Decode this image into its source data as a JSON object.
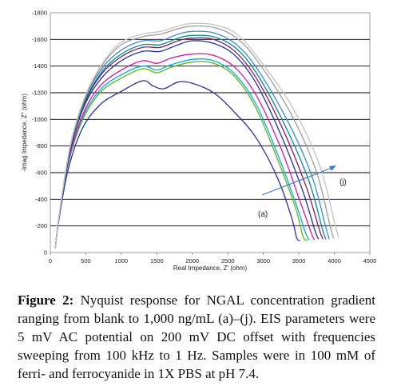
{
  "chart_data": {
    "type": "line",
    "xlabel": "Real Impedance, Z' (ohm)",
    "ylabel": "-Imag Impedance, Z'' (ohm)",
    "xlim": [
      0,
      4500
    ],
    "ylim": [
      0,
      -1800
    ],
    "x_ticks": [
      "0",
      "500",
      "1000",
      "1500",
      "2000",
      "2500",
      "3000",
      "3500",
      "4000",
      "4500"
    ],
    "y_ticks": [
      "0",
      "-200",
      "-400",
      "-600",
      "-800",
      "-1000",
      "-1200",
      "-1400",
      "-1600",
      "-1800"
    ],
    "grid": "horizontal",
    "annotations": [
      "(a)",
      "(j)"
    ],
    "series": [
      {
        "color": "#2a2f8f",
        "points": [
          [
            70,
            -30
          ],
          [
            120,
            -240
          ],
          [
            250,
            -620
          ],
          [
            450,
            -930
          ],
          [
            700,
            -1110
          ],
          [
            1000,
            -1210
          ],
          [
            1300,
            -1290
          ],
          [
            1450,
            -1250
          ],
          [
            1600,
            -1230
          ],
          [
            1800,
            -1280
          ],
          [
            2000,
            -1270
          ],
          [
            2300,
            -1200
          ],
          [
            2600,
            -1050
          ],
          [
            2900,
            -860
          ],
          [
            3200,
            -560
          ],
          [
            3400,
            -260
          ],
          [
            3470,
            -110
          ],
          [
            3520,
            -90
          ]
        ]
      },
      {
        "color": "#66b020",
        "points": [
          [
            70,
            -30
          ],
          [
            120,
            -260
          ],
          [
            250,
            -660
          ],
          [
            450,
            -990
          ],
          [
            700,
            -1200
          ],
          [
            1000,
            -1310
          ],
          [
            1300,
            -1380
          ],
          [
            1500,
            -1350
          ],
          [
            1700,
            -1390
          ],
          [
            2000,
            -1430
          ],
          [
            2300,
            -1420
          ],
          [
            2600,
            -1320
          ],
          [
            2900,
            -1080
          ],
          [
            3200,
            -700
          ],
          [
            3450,
            -340
          ],
          [
            3560,
            -120
          ],
          [
            3620,
            -95
          ]
        ]
      },
      {
        "color": "#00b0d8",
        "points": [
          [
            70,
            -30
          ],
          [
            125,
            -270
          ],
          [
            255,
            -680
          ],
          [
            450,
            -1010
          ],
          [
            700,
            -1220
          ],
          [
            1000,
            -1335
          ],
          [
            1300,
            -1400
          ],
          [
            1500,
            -1370
          ],
          [
            1700,
            -1410
          ],
          [
            2000,
            -1450
          ],
          [
            2300,
            -1440
          ],
          [
            2600,
            -1340
          ],
          [
            2900,
            -1110
          ],
          [
            3200,
            -740
          ],
          [
            3450,
            -380
          ],
          [
            3600,
            -140
          ],
          [
            3650,
            -95
          ]
        ]
      },
      {
        "color": "#d8189a",
        "points": [
          [
            70,
            -30
          ],
          [
            125,
            -280
          ],
          [
            260,
            -700
          ],
          [
            460,
            -1040
          ],
          [
            700,
            -1250
          ],
          [
            1000,
            -1370
          ],
          [
            1300,
            -1440
          ],
          [
            1500,
            -1420
          ],
          [
            1700,
            -1460
          ],
          [
            2000,
            -1490
          ],
          [
            2300,
            -1480
          ],
          [
            2600,
            -1390
          ],
          [
            2900,
            -1180
          ],
          [
            3250,
            -780
          ],
          [
            3520,
            -380
          ],
          [
            3680,
            -140
          ],
          [
            3720,
            -95
          ]
        ]
      },
      {
        "color": "#2030a0",
        "points": [
          [
            70,
            -30
          ],
          [
            130,
            -290
          ],
          [
            265,
            -730
          ],
          [
            470,
            -1090
          ],
          [
            720,
            -1310
          ],
          [
            1000,
            -1440
          ],
          [
            1300,
            -1510
          ],
          [
            1550,
            -1510
          ],
          [
            1800,
            -1560
          ],
          [
            2000,
            -1590
          ],
          [
            2300,
            -1570
          ],
          [
            2600,
            -1480
          ],
          [
            2900,
            -1270
          ],
          [
            3250,
            -880
          ],
          [
            3550,
            -470
          ],
          [
            3730,
            -160
          ],
          [
            3780,
            -100
          ]
        ]
      },
      {
        "color": "#8a1a60",
        "points": [
          [
            70,
            -30
          ],
          [
            130,
            -300
          ],
          [
            270,
            -750
          ],
          [
            475,
            -1110
          ],
          [
            720,
            -1340
          ],
          [
            1000,
            -1470
          ],
          [
            1300,
            -1540
          ],
          [
            1550,
            -1540
          ],
          [
            1800,
            -1590
          ],
          [
            2000,
            -1610
          ],
          [
            2300,
            -1600
          ],
          [
            2600,
            -1510
          ],
          [
            2900,
            -1310
          ],
          [
            3280,
            -920
          ],
          [
            3600,
            -500
          ],
          [
            3790,
            -170
          ],
          [
            3840,
            -100
          ]
        ]
      },
      {
        "color": "#008a8a",
        "points": [
          [
            70,
            -30
          ],
          [
            132,
            -310
          ],
          [
            275,
            -770
          ],
          [
            480,
            -1130
          ],
          [
            730,
            -1360
          ],
          [
            1000,
            -1490
          ],
          [
            1300,
            -1560
          ],
          [
            1550,
            -1560
          ],
          [
            1800,
            -1610
          ],
          [
            2000,
            -1630
          ],
          [
            2300,
            -1620
          ],
          [
            2600,
            -1540
          ],
          [
            2900,
            -1350
          ],
          [
            3300,
            -960
          ],
          [
            3640,
            -540
          ],
          [
            3830,
            -180
          ],
          [
            3880,
            -100
          ]
        ]
      },
      {
        "color": "#3a8ad8",
        "points": [
          [
            70,
            -30
          ],
          [
            135,
            -320
          ],
          [
            280,
            -790
          ],
          [
            490,
            -1160
          ],
          [
            740,
            -1390
          ],
          [
            1000,
            -1520
          ],
          [
            1300,
            -1590
          ],
          [
            1550,
            -1590
          ],
          [
            1800,
            -1640
          ],
          [
            2000,
            -1660
          ],
          [
            2300,
            -1650
          ],
          [
            2600,
            -1570
          ],
          [
            2900,
            -1390
          ],
          [
            3330,
            -1000
          ],
          [
            3680,
            -580
          ],
          [
            3880,
            -190
          ],
          [
            3930,
            -100
          ]
        ]
      },
      {
        "color": "#9c9c9c",
        "points": [
          [
            70,
            -30
          ],
          [
            138,
            -330
          ],
          [
            285,
            -810
          ],
          [
            500,
            -1180
          ],
          [
            750,
            -1420
          ],
          [
            1000,
            -1560
          ],
          [
            1300,
            -1620
          ],
          [
            1550,
            -1640
          ],
          [
            1800,
            -1680
          ],
          [
            2000,
            -1700
          ],
          [
            2300,
            -1690
          ],
          [
            2600,
            -1620
          ],
          [
            2900,
            -1450
          ],
          [
            3370,
            -1060
          ],
          [
            3740,
            -620
          ],
          [
            3940,
            -200
          ],
          [
            3990,
            -105
          ]
        ]
      },
      {
        "color": "#c4c4c4",
        "points": [
          [
            70,
            -30
          ],
          [
            140,
            -340
          ],
          [
            290,
            -830
          ],
          [
            510,
            -1200
          ],
          [
            760,
            -1440
          ],
          [
            1000,
            -1580
          ],
          [
            1300,
            -1640
          ],
          [
            1550,
            -1660
          ],
          [
            1800,
            -1700
          ],
          [
            2000,
            -1720
          ],
          [
            2300,
            -1710
          ],
          [
            2600,
            -1650
          ],
          [
            2900,
            -1480
          ],
          [
            3400,
            -1100
          ],
          [
            3790,
            -660
          ],
          [
            4010,
            -210
          ],
          [
            4060,
            -110
          ]
        ]
      }
    ]
  },
  "caption": {
    "label": "Figure 2:",
    "text": " Nyquist response for NGAL concentration gradient ranging from blank to 1,000 ng/mL (a)–(j). EIS parameters were 5 mV AC potential on 200 mV DC offset with frequencies sweeping from 100 kHz to 1 Hz. Samples were in 100 mM of ferri- and ferrocyanide in 1X PBS at pH 7.4."
  }
}
